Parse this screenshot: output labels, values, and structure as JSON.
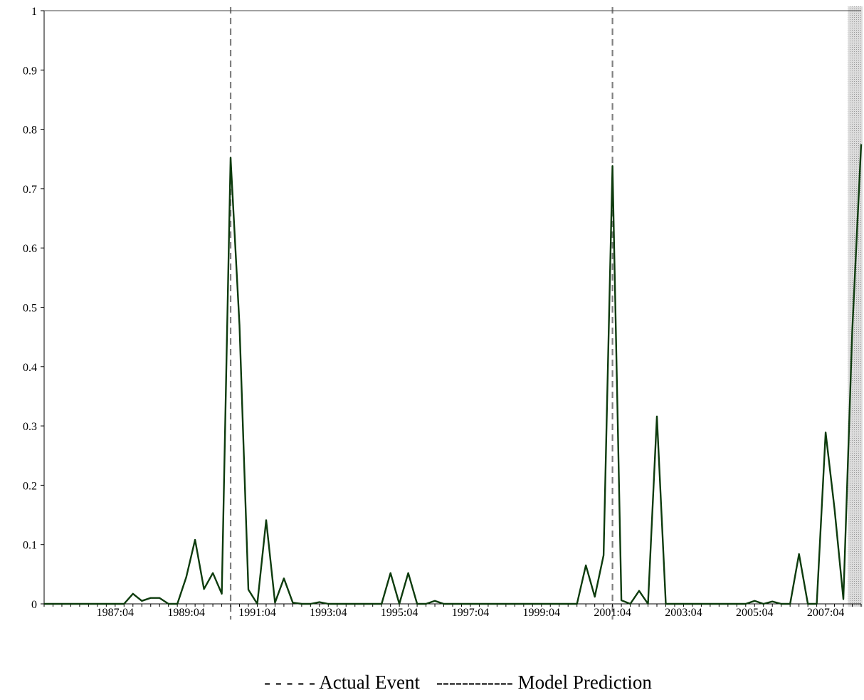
{
  "chart_data": {
    "type": "line",
    "title": "",
    "xlabel": "",
    "ylabel": "",
    "ylim": [
      0,
      1
    ],
    "y_ticks": [
      "0",
      "0.1",
      "0.2",
      "0.3",
      "0.4",
      "0.5",
      "0.6",
      "0.7",
      "0.8",
      "0.9",
      "1"
    ],
    "x_tick_labels": [
      "1987:04",
      "1989:04",
      "1991:04",
      "1993:04",
      "1995:04",
      "1997:04",
      "1999:04",
      "2001:04",
      "2003:04",
      "2005:04",
      "2007:04"
    ],
    "x_start": "1985:04",
    "x_end": "2008:04",
    "grid": false,
    "legend": {
      "placement": "bottom",
      "actual_label": "- - - - - Actual Event",
      "model_label": "------------ Model Prediction"
    },
    "colors": {
      "prediction_line": "#0d3b0d",
      "event_line": "#808080",
      "shade": "#c8c8c8",
      "axis": "#000000"
    },
    "actual_events": [
      "1990:07",
      "2001:04"
    ],
    "shaded_region": [
      "2008:01",
      "2008:04"
    ],
    "series": [
      {
        "name": "Model Prediction",
        "values": [
          [
            "1985:04",
            0
          ],
          [
            "1985:07",
            0
          ],
          [
            "1985:10",
            0
          ],
          [
            "1986:01",
            0
          ],
          [
            "1986:04",
            0
          ],
          [
            "1986:07",
            0
          ],
          [
            "1986:10",
            0
          ],
          [
            "1987:01",
            0
          ],
          [
            "1987:04",
            0
          ],
          [
            "1987:07",
            0
          ],
          [
            "1987:10",
            0.017
          ],
          [
            "1988:01",
            0.005
          ],
          [
            "1988:04",
            0.01
          ],
          [
            "1988:07",
            0.01
          ],
          [
            "1988:10",
            0
          ],
          [
            "1989:01",
            0
          ],
          [
            "1989:04",
            0.045
          ],
          [
            "1989:07",
            0.108
          ],
          [
            "1989:10",
            0.025
          ],
          [
            "1990:01",
            0.052
          ],
          [
            "1990:04",
            0.017
          ],
          [
            "1990:07",
            0.752
          ],
          [
            "1990:10",
            0.47
          ],
          [
            "1991:01",
            0.024
          ],
          [
            "1991:04",
            0.0
          ],
          [
            "1991:07",
            0.141
          ],
          [
            "1991:10",
            0.002
          ],
          [
            "1992:01",
            0.043
          ],
          [
            "1992:04",
            0.002
          ],
          [
            "1992:07",
            0
          ],
          [
            "1992:10",
            0
          ],
          [
            "1993:01",
            0.003
          ],
          [
            "1993:04",
            0
          ],
          [
            "1993:07",
            0
          ],
          [
            "1993:10",
            0
          ],
          [
            "1994:01",
            0
          ],
          [
            "1994:04",
            0
          ],
          [
            "1994:07",
            0
          ],
          [
            "1994:10",
            0
          ],
          [
            "1995:01",
            0.052
          ],
          [
            "1995:04",
            0
          ],
          [
            "1995:07",
            0.052
          ],
          [
            "1995:10",
            0
          ],
          [
            "1996:01",
            0
          ],
          [
            "1996:04",
            0.005
          ],
          [
            "1996:07",
            0
          ],
          [
            "1996:10",
            0
          ],
          [
            "1997:01",
            0
          ],
          [
            "1997:04",
            0
          ],
          [
            "1997:07",
            0
          ],
          [
            "1997:10",
            0
          ],
          [
            "1998:01",
            0
          ],
          [
            "1998:04",
            0
          ],
          [
            "1998:07",
            0
          ],
          [
            "1998:10",
            0
          ],
          [
            "1999:01",
            0
          ],
          [
            "1999:04",
            0
          ],
          [
            "1999:07",
            0
          ],
          [
            "1999:10",
            0
          ],
          [
            "2000:01",
            0
          ],
          [
            "2000:04",
            0
          ],
          [
            "2000:07",
            0.065
          ],
          [
            "2000:10",
            0.012
          ],
          [
            "2001:01",
            0.082
          ],
          [
            "2001:04",
            0.738
          ],
          [
            "2001:07",
            0.006
          ],
          [
            "2001:10",
            0.0
          ],
          [
            "2002:01",
            0.022
          ],
          [
            "2002:04",
            0
          ],
          [
            "2002:07",
            0.316
          ],
          [
            "2002:10",
            0
          ],
          [
            "2003:01",
            0
          ],
          [
            "2003:04",
            0
          ],
          [
            "2003:07",
            0
          ],
          [
            "2003:10",
            0
          ],
          [
            "2004:01",
            0
          ],
          [
            "2004:04",
            0
          ],
          [
            "2004:07",
            0
          ],
          [
            "2004:10",
            0
          ],
          [
            "2005:01",
            0
          ],
          [
            "2005:04",
            0.005
          ],
          [
            "2005:07",
            0
          ],
          [
            "2005:10",
            0.004
          ],
          [
            "2006:01",
            0
          ],
          [
            "2006:04",
            0
          ],
          [
            "2006:07",
            0.084
          ],
          [
            "2006:10",
            0
          ],
          [
            "2007:01",
            0
          ],
          [
            "2007:04",
            0.289
          ],
          [
            "2007:07",
            0.16
          ],
          [
            "2007:10",
            0.008
          ],
          [
            "2008:01",
            0.46
          ],
          [
            "2008:04",
            0.775
          ]
        ]
      }
    ]
  }
}
